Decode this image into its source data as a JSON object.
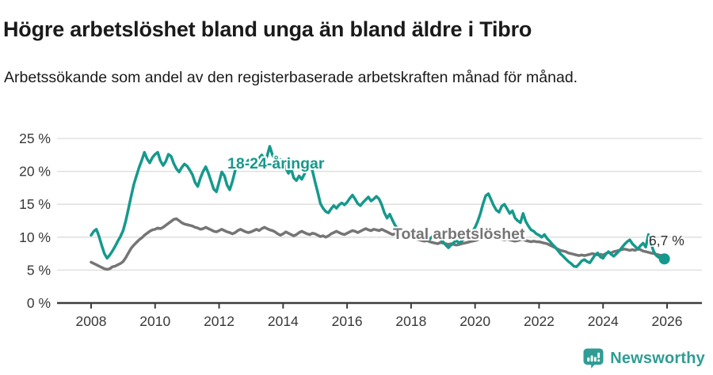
{
  "chart_data": {
    "type": "line",
    "title": "Högre arbetslöshet bland unga än bland äldre i Tibro",
    "subtitle": "Arbetssökande som andel av den registerbaserade arbetskraften månad för månad.",
    "x_unit": "year-month",
    "x_start_year": 2008,
    "points_per_year": 12,
    "x_tick_years": [
      2008,
      2010,
      2012,
      2014,
      2016,
      2018,
      2020,
      2022,
      2024,
      2026
    ],
    "y_ticks": [
      0,
      5,
      10,
      15,
      20,
      25
    ],
    "y_tick_suffix": " %",
    "ylim": [
      0,
      26.5
    ],
    "xlim": [
      2007.1,
      2027.1
    ],
    "grid": "horizontal",
    "legend_position": "inline-labels",
    "series": [
      {
        "name": "18-24-åringar",
        "color": "#16998c",
        "values": [
          10.3,
          10.9,
          11.2,
          10.1,
          8.7,
          7.5,
          6.8,
          7.3,
          7.9,
          8.6,
          9.4,
          10.1,
          11.0,
          12.5,
          14.3,
          16.2,
          18.0,
          19.3,
          20.6,
          21.7,
          22.9,
          21.9,
          21.3,
          22.1,
          22.6,
          22.9,
          21.6,
          20.9,
          21.5,
          22.6,
          22.3,
          21.2,
          20.4,
          19.9,
          20.6,
          21.1,
          20.8,
          20.2,
          19.5,
          18.3,
          17.7,
          19.0,
          20.0,
          20.7,
          19.7,
          18.5,
          17.3,
          16.9,
          18.4,
          19.9,
          19.3,
          17.9,
          17.2,
          18.5,
          20.1,
          21.6,
          22.0,
          21.5,
          21.1,
          21.7,
          21.4,
          20.9,
          21.2,
          22.0,
          22.5,
          21.8,
          22.3,
          23.8,
          22.5,
          21.8,
          21.4,
          21.8,
          21.5,
          20.5,
          19.7,
          20.4,
          19.0,
          18.6,
          19.3,
          18.8,
          19.6,
          20.4,
          21.0,
          20.1,
          18.4,
          16.8,
          15.1,
          14.4,
          13.9,
          13.7,
          14.3,
          14.8,
          14.4,
          14.9,
          15.2,
          14.9,
          15.3,
          15.9,
          16.4,
          15.8,
          15.1,
          14.8,
          15.3,
          15.7,
          16.1,
          15.5,
          15.8,
          16.2,
          15.8,
          14.9,
          13.7,
          12.9,
          13.5,
          12.6,
          11.8,
          11.3,
          11.0,
          10.6,
          10.9,
          10.4,
          10.2,
          10.6,
          10.0,
          9.7,
          10.1,
          10.4,
          10.0,
          9.7,
          10.1,
          10.4,
          10.0,
          9.7,
          9.3,
          8.8,
          8.4,
          8.8,
          9.2,
          9.5,
          9.1,
          9.4,
          9.8,
          10.1,
          10.5,
          10.9,
          11.5,
          12.4,
          13.6,
          15.1,
          16.3,
          16.6,
          15.7,
          14.8,
          14.1,
          13.8,
          14.7,
          15.0,
          14.3,
          13.6,
          14.0,
          12.9,
          12.5,
          12.2,
          13.6,
          12.4,
          11.7,
          11.1,
          10.9,
          10.5,
          10.3,
          10.0,
          10.4,
          9.8,
          9.4,
          8.9,
          8.5,
          8.0,
          7.5,
          7.1,
          6.7,
          6.3,
          6.0,
          5.6,
          5.5,
          5.9,
          6.4,
          6.6,
          6.3,
          6.1,
          6.7,
          7.3,
          7.6,
          7.0,
          6.8,
          7.4,
          7.8,
          7.4,
          7.1,
          7.5,
          7.9,
          8.4,
          8.9,
          9.3,
          9.6,
          9.0,
          8.6,
          8.2,
          8.7,
          9.1,
          8.5,
          10.4,
          9.0,
          7.8,
          7.2,
          6.9,
          7.1,
          6.7
        ]
      },
      {
        "name": "Total arbetslöshet",
        "color": "#757575",
        "values": [
          6.2,
          6.0,
          5.8,
          5.6,
          5.4,
          5.2,
          5.1,
          5.2,
          5.5,
          5.6,
          5.8,
          6.0,
          6.3,
          6.9,
          7.6,
          8.3,
          8.8,
          9.2,
          9.6,
          9.9,
          10.3,
          10.6,
          10.9,
          11.1,
          11.2,
          11.4,
          11.3,
          11.5,
          11.8,
          12.1,
          12.4,
          12.7,
          12.8,
          12.5,
          12.2,
          12.0,
          11.9,
          11.8,
          11.7,
          11.5,
          11.4,
          11.2,
          11.3,
          11.5,
          11.3,
          11.1,
          10.9,
          10.8,
          11.0,
          11.2,
          11.0,
          10.8,
          10.7,
          10.5,
          10.7,
          11.0,
          11.2,
          11.0,
          10.8,
          10.7,
          10.8,
          11.0,
          11.2,
          11.0,
          11.3,
          11.5,
          11.3,
          11.1,
          11.0,
          10.8,
          10.5,
          10.3,
          10.5,
          10.8,
          10.6,
          10.4,
          10.2,
          10.4,
          10.7,
          10.9,
          10.7,
          10.5,
          10.4,
          10.6,
          10.5,
          10.3,
          10.1,
          10.2,
          10.0,
          10.2,
          10.5,
          10.7,
          10.9,
          10.7,
          10.5,
          10.4,
          10.6,
          10.8,
          11.0,
          10.9,
          10.7,
          10.9,
          11.1,
          11.3,
          11.1,
          11.0,
          11.2,
          11.1,
          11.0,
          11.2,
          11.0,
          10.8,
          10.6,
          10.4,
          10.5,
          10.3,
          10.1,
          10.0,
          10.2,
          10.1,
          10.0,
          9.9,
          9.7,
          9.6,
          9.5,
          9.4,
          9.5,
          9.3,
          9.2,
          9.1,
          9.0,
          9.2,
          9.1,
          9.0,
          8.9,
          9.0,
          8.9,
          8.8,
          8.9,
          9.0,
          9.1,
          9.2,
          9.3,
          9.4,
          9.5,
          9.6,
          9.8,
          10.0,
          10.2,
          10.3,
          10.2,
          10.0,
          9.9,
          9.8,
          9.7,
          9.6,
          9.7,
          9.6,
          9.5,
          9.4,
          9.5,
          9.6,
          9.7,
          9.5,
          9.4,
          9.3,
          9.4,
          9.3,
          9.3,
          9.2,
          9.1,
          9.0,
          8.8,
          8.6,
          8.4,
          8.2,
          8.0,
          7.9,
          7.8,
          7.6,
          7.5,
          7.4,
          7.3,
          7.2,
          7.3,
          7.2,
          7.3,
          7.4,
          7.5,
          7.4,
          7.3,
          7.4,
          7.3,
          7.5,
          7.7,
          7.6,
          7.8,
          7.9,
          8.0,
          8.1,
          8.2,
          8.1,
          8.0,
          8.1,
          8.0,
          8.2,
          8.1,
          7.9,
          7.8,
          7.7,
          7.6,
          7.5,
          7.4,
          7.3,
          7.2,
          7.2
        ]
      }
    ],
    "end_annotation": {
      "label": "6,7 %",
      "value": 6.7,
      "series": "18-24-åringar"
    }
  },
  "footer": {
    "brand": "Newsworthy"
  },
  "colors": {
    "accent_teal": "#16998c",
    "series_gray": "#757575",
    "axis": "#3c3c3c",
    "grid": "#dcdcdc",
    "text": "#1a1a1a",
    "brand_teal": "#2f9d94"
  }
}
